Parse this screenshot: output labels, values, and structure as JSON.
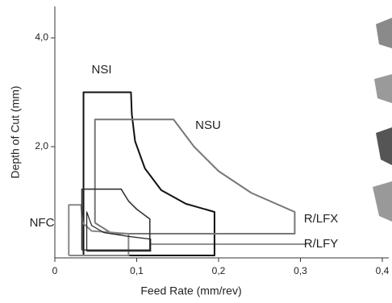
{
  "chart_data": {
    "type": "line",
    "x_label": "Feed Rate (mm/rev)",
    "y_label": "Depth of Cut (mm)",
    "xlim": [
      0,
      0.41
    ],
    "ylim": [
      0,
      4.6
    ],
    "xticks": [
      {
        "value": 0,
        "label": "0"
      },
      {
        "value": 0.1,
        "label": "0,1"
      },
      {
        "value": 0.2,
        "label": "0,2"
      },
      {
        "value": 0.3,
        "label": "0,3"
      },
      {
        "value": 0.4,
        "label": "0,4"
      }
    ],
    "yticks": [
      {
        "value": 2,
        "label": "2,0"
      },
      {
        "value": 4,
        "label": "4,0"
      }
    ],
    "series": [
      {
        "name": "NSI",
        "color": "#111111",
        "x": [
          0.035,
          0.035,
          0.093,
          0.094,
          0.098,
          0.11,
          0.13,
          0.16,
          0.195,
          0.195,
          0.035
        ],
        "values": [
          0,
          3.0,
          3.0,
          2.6,
          2.1,
          1.6,
          1.2,
          0.95,
          0.8,
          0,
          0
        ]
      },
      {
        "name": "NSU",
        "color": "#777777",
        "x": [
          0.049,
          0.049,
          0.145,
          0.17,
          0.2,
          0.24,
          0.293,
          0.293,
          0.07,
          0.049
        ],
        "values": [
          0.6,
          2.5,
          2.5,
          2.0,
          1.55,
          1.15,
          0.8,
          0.4,
          0.4,
          0.6
        ]
      },
      {
        "name": "NFC",
        "color": "#888888",
        "x": [
          0.017,
          0.017,
          0.032,
          0.034,
          0.045,
          0.09,
          0.09,
          0.017
        ],
        "values": [
          0,
          0.93,
          0.93,
          0.6,
          0.45,
          0.4,
          0,
          0
        ]
      },
      {
        "name": "R/LFX",
        "color": "#333333",
        "x": [
          0.033,
          0.033,
          0.081,
          0.09,
          0.1,
          0.116,
          0.116,
          0.033
        ],
        "values": [
          0.1,
          1.22,
          1.22,
          1.0,
          0.85,
          0.67,
          0.1,
          0.1
        ]
      },
      {
        "name": "R/LFY",
        "color": "#222222",
        "x": [
          0.039,
          0.039,
          0.045,
          0.06,
          0.09,
          0.117,
          0.117,
          0.039
        ],
        "values": [
          0.08,
          0.8,
          0.55,
          0.42,
          0.35,
          0.3,
          0.08,
          0.08
        ]
      }
    ]
  }
}
